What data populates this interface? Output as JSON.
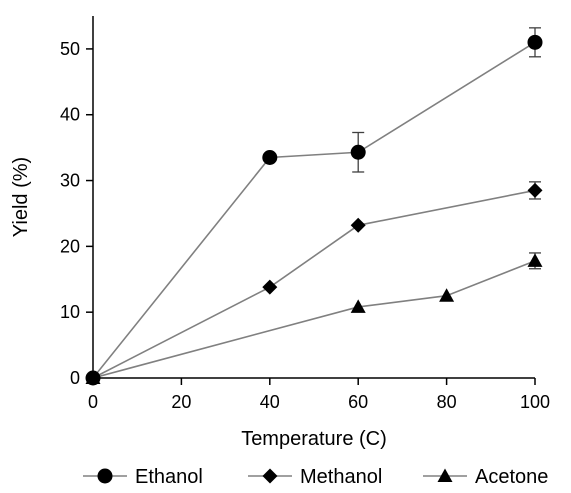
{
  "chart_data": {
    "type": "line",
    "xlabel": "Temperature (C)",
    "ylabel": "Yield (%)",
    "xlim": [
      0,
      100
    ],
    "ylim": [
      0,
      55
    ],
    "xticks": [
      0,
      20,
      40,
      60,
      80,
      100
    ],
    "yticks": [
      0,
      10,
      20,
      30,
      40,
      50
    ],
    "grid": false,
    "legend_position": "bottom",
    "line_color": "#808080",
    "marker_color": "#000000",
    "series": [
      {
        "name": "Ethanol",
        "marker": "circle",
        "x": [
          0,
          40,
          60,
          100
        ],
        "y": [
          0,
          33.5,
          34.3,
          51
        ],
        "error": [
          0,
          0,
          3,
          2.2
        ]
      },
      {
        "name": "Methanol",
        "marker": "diamond",
        "x": [
          0,
          40,
          60,
          100
        ],
        "y": [
          0,
          13.8,
          23.2,
          28.5
        ],
        "error": [
          0,
          0,
          0,
          1.3
        ]
      },
      {
        "name": "Acetone",
        "marker": "triangle",
        "x": [
          0,
          60,
          80,
          100
        ],
        "y": [
          0,
          10.8,
          12.5,
          17.8
        ],
        "error": [
          0,
          0,
          0,
          1.2
        ]
      }
    ]
  }
}
